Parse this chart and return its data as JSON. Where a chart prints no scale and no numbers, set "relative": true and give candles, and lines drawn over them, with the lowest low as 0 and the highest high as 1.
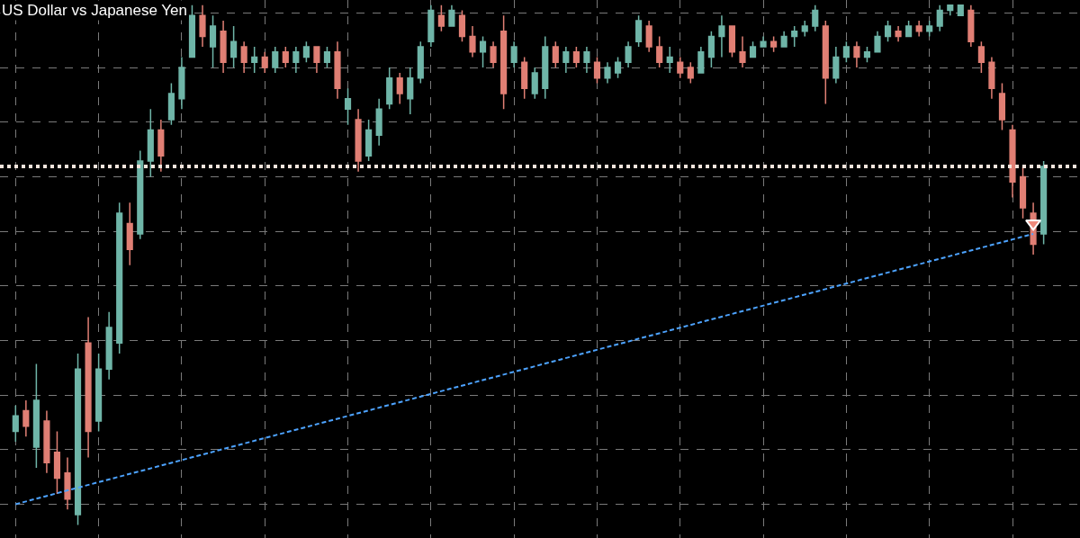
{
  "chart_data": {
    "type": "candlestick",
    "title": "US Dollar vs Japanese Yen",
    "relative": true,
    "grid": true,
    "colors": [
      "#6fb5a8",
      "#e07f74",
      "#6fb5a8",
      "#e07f74",
      "#e07f74",
      "#e07f74",
      "#6fb5a8",
      "#e07f74",
      "#6fb5a8",
      "#6fb5a8",
      "#6fb5a8",
      "#e07f74",
      "#6fb5a8",
      "#6fb5a8",
      "#e07f74",
      "#6fb5a8",
      "#6fb5a8",
      "#6fb5a8",
      "#e07f74",
      "#6fb5a8",
      "#e07f74",
      "#6fb5a8",
      "#e07f74",
      "#6fb5a8",
      "#e07f74",
      "#6fb5a8",
      "#e07f74",
      "#6fb5a8",
      "#6fb5a8",
      "#e07f74",
      "#6fb5a8",
      "#e07f74",
      "#6fb5a8",
      "#e07f74",
      "#6fb5a8",
      "#6fb5a8",
      "#6fb5a8",
      "#e07f74",
      "#6fb5a8",
      "#6fb5a8",
      "#6fb5a8",
      "#e07f74",
      "#6fb5a8",
      "#e07f74",
      "#e07f74",
      "#6fb5a8",
      "#e07f74",
      "#e07f74",
      "#6fb5a8",
      "#e07f74",
      "#6fb5a8",
      "#6fb5a8",
      "#e07f74",
      "#6fb5a8",
      "#e07f74",
      "#6fb5a8",
      "#e07f74",
      "#6fb5a8",
      "#6fb5a8",
      "#6fb5a8",
      "#6fb5a8",
      "#e07f74",
      "#e07f74",
      "#6fb5a8",
      "#e07f74",
      "#e07f74",
      "#6fb5a8",
      "#6fb5a8",
      "#6fb5a8",
      "#e07f74",
      "#e07f74",
      "#6fb5a8",
      "#6fb5a8",
      "#e07f74",
      "#6fb5a8",
      "#6fb5a8",
      "#6fb5a8",
      "#6fb5a8",
      "#e07f74",
      "#6fb5a8",
      "#6fb5a8",
      "#e07f74",
      "#6fb5a8",
      "#6fb5a8",
      "#6fb5a8",
      "#e07f74",
      "#6fb5a8",
      "#e07f74",
      "#6fb5a8",
      "#6fb5a8",
      "#6fb5a8",
      "#6fb5a8",
      "#e07f74",
      "#e07f74",
      "#e07f74",
      "#e07f74",
      "#e07f74",
      "#e07f74",
      "#e07f74",
      "#6fb5a8"
    ],
    "categories": [
      null,
      null,
      null,
      null,
      null,
      null,
      null,
      null,
      null,
      null,
      null,
      null,
      null,
      null,
      null,
      null,
      null,
      null,
      null,
      null,
      null,
      null,
      null,
      null,
      null,
      null,
      null,
      null,
      null,
      null,
      null,
      null,
      null,
      null,
      null,
      null,
      null,
      null,
      null,
      null,
      null,
      null,
      null,
      null,
      null,
      null,
      null,
      null,
      null,
      null,
      null,
      null,
      null,
      null,
      null,
      null,
      null,
      null,
      null,
      null,
      null,
      null,
      null,
      null,
      null,
      null,
      null,
      null,
      null,
      null,
      null,
      null,
      null,
      null,
      null,
      null,
      null,
      null,
      null,
      null,
      null,
      null,
      null,
      null,
      null,
      null,
      null,
      null,
      null,
      null,
      null,
      null,
      null,
      null,
      null,
      null,
      null,
      null,
      null,
      null
    ],
    "ohlc": [
      [
        0.18,
        0.23,
        0.16,
        0.21
      ],
      [
        0.22,
        0.24,
        0.17,
        0.19
      ],
      [
        0.15,
        0.31,
        0.11,
        0.24
      ],
      [
        0.2,
        0.22,
        0.1,
        0.12
      ],
      [
        0.14,
        0.18,
        0.06,
        0.09
      ],
      [
        0.1,
        0.13,
        0.03,
        0.05
      ],
      [
        0.02,
        0.33,
        0.0,
        0.3
      ],
      [
        0.35,
        0.4,
        0.13,
        0.18
      ],
      [
        0.2,
        0.33,
        0.18,
        0.3
      ],
      [
        0.3,
        0.41,
        0.28,
        0.38
      ],
      [
        0.35,
        0.62,
        0.33,
        0.6
      ],
      [
        0.58,
        0.62,
        0.5,
        0.53
      ],
      [
        0.56,
        0.72,
        0.55,
        0.7
      ],
      [
        0.7,
        0.8,
        0.67,
        0.76
      ],
      [
        0.76,
        0.78,
        0.68,
        0.71
      ],
      [
        0.78,
        0.85,
        0.77,
        0.83
      ],
      [
        0.82,
        0.9,
        0.8,
        0.88
      ],
      [
        0.9,
        1.0,
        0.9,
        0.98
      ],
      [
        0.98,
        1.0,
        0.92,
        0.94
      ],
      [
        0.92,
        0.98,
        0.88,
        0.96
      ],
      [
        0.95,
        0.97,
        0.87,
        0.89
      ],
      [
        0.9,
        0.96,
        0.88,
        0.93
      ],
      [
        0.92,
        0.93,
        0.87,
        0.89
      ],
      [
        0.89,
        0.92,
        0.87,
        0.9
      ],
      [
        0.9,
        0.91,
        0.87,
        0.88
      ],
      [
        0.88,
        0.92,
        0.87,
        0.91
      ],
      [
        0.91,
        0.92,
        0.88,
        0.89
      ],
      [
        0.89,
        0.92,
        0.87,
        0.91
      ],
      [
        0.9,
        0.93,
        0.89,
        0.92
      ],
      [
        0.92,
        0.92,
        0.87,
        0.89
      ],
      [
        0.89,
        0.92,
        0.88,
        0.91
      ],
      [
        0.91,
        0.93,
        0.82,
        0.84
      ],
      [
        0.8,
        0.84,
        0.77,
        0.82
      ],
      [
        0.78,
        0.8,
        0.68,
        0.7
      ],
      [
        0.71,
        0.78,
        0.7,
        0.76
      ],
      [
        0.75,
        0.82,
        0.73,
        0.8
      ],
      [
        0.81,
        0.88,
        0.8,
        0.86
      ],
      [
        0.86,
        0.87,
        0.81,
        0.83
      ],
      [
        0.82,
        0.88,
        0.79,
        0.86
      ],
      [
        0.86,
        0.93,
        0.85,
        0.92
      ],
      [
        0.93,
        1.0,
        0.92,
        0.99
      ],
      [
        0.98,
        1.0,
        0.95,
        0.96
      ],
      [
        0.96,
        1.0,
        0.96,
        0.99
      ],
      [
        0.98,
        0.99,
        0.93,
        0.94
      ],
      [
        0.94,
        0.96,
        0.9,
        0.91
      ],
      [
        0.91,
        0.94,
        0.88,
        0.93
      ],
      [
        0.92,
        0.93,
        0.88,
        0.89
      ],
      [
        0.95,
        0.98,
        0.8,
        0.83
      ],
      [
        0.89,
        0.93,
        0.88,
        0.92
      ],
      [
        0.89,
        0.9,
        0.82,
        0.84
      ],
      [
        0.83,
        0.88,
        0.82,
        0.87
      ],
      [
        0.84,
        0.94,
        0.82,
        0.92
      ],
      [
        0.92,
        0.93,
        0.88,
        0.89
      ],
      [
        0.89,
        0.92,
        0.87,
        0.91
      ],
      [
        0.91,
        0.92,
        0.88,
        0.89
      ],
      [
        0.89,
        0.92,
        0.87,
        0.91
      ],
      [
        0.89,
        0.9,
        0.85,
        0.86
      ],
      [
        0.86,
        0.89,
        0.85,
        0.88
      ],
      [
        0.87,
        0.9,
        0.86,
        0.89
      ],
      [
        0.89,
        0.93,
        0.88,
        0.92
      ],
      [
        0.93,
        0.98,
        0.92,
        0.97
      ],
      [
        0.96,
        0.97,
        0.91,
        0.92
      ],
      [
        0.92,
        0.94,
        0.88,
        0.89
      ],
      [
        0.89,
        0.92,
        0.87,
        0.9
      ],
      [
        0.89,
        0.9,
        0.86,
        0.87
      ],
      [
        0.88,
        0.89,
        0.85,
        0.86
      ],
      [
        0.87,
        0.92,
        0.87,
        0.91
      ],
      [
        0.9,
        0.95,
        0.88,
        0.94
      ],
      [
        0.94,
        0.98,
        0.9,
        0.96
      ],
      [
        0.96,
        0.96,
        0.9,
        0.91
      ],
      [
        0.91,
        0.94,
        0.88,
        0.89
      ],
      [
        0.9,
        0.93,
        0.9,
        0.92
      ],
      [
        0.92,
        0.94,
        0.92,
        0.93
      ],
      [
        0.93,
        0.94,
        0.91,
        0.92
      ],
      [
        0.92,
        0.95,
        0.92,
        0.94
      ],
      [
        0.94,
        0.96,
        0.92,
        0.95
      ],
      [
        0.95,
        0.97,
        0.94,
        0.96
      ],
      [
        0.96,
        1.0,
        0.95,
        0.99
      ],
      [
        0.96,
        0.97,
        0.81,
        0.86
      ],
      [
        0.86,
        0.92,
        0.85,
        0.9
      ],
      [
        0.9,
        0.93,
        0.89,
        0.92
      ],
      [
        0.92,
        0.93,
        0.88,
        0.9
      ],
      [
        0.9,
        0.92,
        0.89,
        0.91
      ],
      [
        0.91,
        0.95,
        0.91,
        0.94
      ],
      [
        0.94,
        0.97,
        0.93,
        0.96
      ],
      [
        0.95,
        0.96,
        0.93,
        0.94
      ],
      [
        0.94,
        0.97,
        0.94,
        0.96
      ],
      [
        0.96,
        0.97,
        0.94,
        0.95
      ],
      [
        0.95,
        0.97,
        0.94,
        0.96
      ],
      [
        0.96,
        1.0,
        0.95,
        0.99
      ],
      [
        0.99,
        1.0,
        0.98,
        1.0
      ],
      [
        0.98,
        1.0,
        0.98,
        1.0
      ],
      [
        0.99,
        1.0,
        0.92,
        0.93
      ],
      [
        0.92,
        0.93,
        0.87,
        0.89
      ],
      [
        0.89,
        0.9,
        0.82,
        0.84
      ],
      [
        0.83,
        0.85,
        0.76,
        0.78
      ],
      [
        0.76,
        0.77,
        0.63,
        0.66
      ],
      [
        0.67,
        0.69,
        0.59,
        0.61
      ],
      [
        0.6,
        0.62,
        0.52,
        0.54
      ],
      [
        0.56,
        0.7,
        0.54,
        0.69
      ]
    ],
    "series": [
      {
        "type": "line",
        "color": "#4da3ff",
        "line_style": "dashed",
        "values": [
          0.04,
          null,
          null,
          null,
          null,
          null,
          null,
          null,
          null,
          null,
          null,
          null,
          null,
          null,
          null,
          null,
          null,
          null,
          null,
          null,
          null,
          null,
          null,
          null,
          null,
          null,
          null,
          null,
          null,
          null,
          null,
          null,
          null,
          null,
          null,
          null,
          null,
          null,
          null,
          null,
          null,
          null,
          null,
          null,
          null,
          null,
          null,
          null,
          null,
          null,
          null,
          null,
          null,
          null,
          null,
          null,
          null,
          null,
          null,
          null,
          null,
          null,
          null,
          null,
          null,
          null,
          null,
          null,
          null,
          null,
          null,
          null,
          null,
          null,
          null,
          null,
          null,
          null,
          null,
          null,
          null,
          null,
          null,
          null,
          null,
          null,
          null,
          null,
          null,
          null,
          null,
          null,
          null,
          null,
          null,
          null,
          null,
          null,
          0.56,
          null
        ]
      },
      {
        "type": "scatter",
        "color": "#f08a7c",
        "marker": "triangle",
        "values": [
          null,
          null,
          null,
          null,
          null,
          null,
          null,
          null,
          null,
          null,
          null,
          null,
          null,
          null,
          null,
          null,
          null,
          null,
          null,
          null,
          null,
          null,
          null,
          null,
          null,
          null,
          null,
          null,
          null,
          null,
          null,
          null,
          null,
          null,
          null,
          null,
          null,
          null,
          null,
          null,
          null,
          null,
          null,
          null,
          null,
          null,
          null,
          null,
          null,
          null,
          null,
          null,
          null,
          null,
          null,
          null,
          null,
          null,
          null,
          null,
          null,
          null,
          null,
          null,
          null,
          null,
          null,
          null,
          null,
          null,
          null,
          null,
          null,
          null,
          null,
          null,
          null,
          null,
          null,
          null,
          null,
          null,
          null,
          null,
          null,
          null,
          null,
          null,
          null,
          null,
          null,
          null,
          null,
          null,
          null,
          null,
          null,
          null,
          0.58,
          null
        ]
      }
    ],
    "ref_lines": [
      {
        "axis": "y",
        "value": 0.69,
        "color": "#f3e4dc",
        "line_style": "dotted"
      }
    ]
  }
}
